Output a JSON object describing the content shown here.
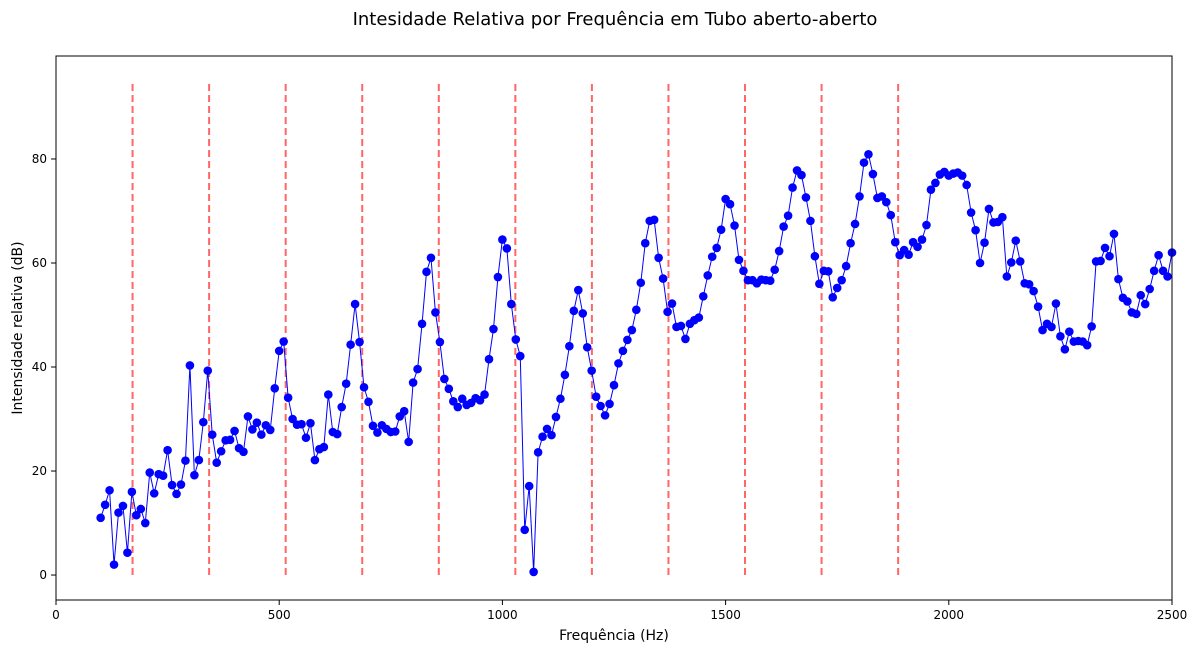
{
  "chart_data": {
    "type": "line",
    "title": "Intesidade Relativa por Frequência em Tubo aberto-aberto",
    "xlabel": "Frequência (Hz)",
    "ylabel": "Intensidade relativa (dB)",
    "x": [
      100,
      110,
      120,
      130,
      140,
      150,
      160,
      170,
      180,
      190,
      200,
      210,
      220,
      230,
      240,
      250,
      260,
      270,
      280,
      290,
      300,
      310,
      320,
      330,
      340,
      350,
      360,
      370,
      380,
      390,
      400,
      410,
      420,
      430,
      440,
      450,
      460,
      470,
      480,
      490,
      500,
      510,
      520,
      530,
      540,
      550,
      560,
      570,
      580,
      590,
      600,
      610,
      620,
      630,
      640,
      650,
      660,
      670,
      680,
      690,
      700,
      710,
      720,
      730,
      740,
      750,
      760,
      770,
      780,
      790,
      800,
      810,
      820,
      830,
      840,
      850,
      860,
      870,
      880,
      890,
      900,
      910,
      920,
      930,
      940,
      950,
      960,
      970,
      980,
      990,
      1000,
      1010,
      1020,
      1030,
      1040,
      1050,
      1060,
      1070,
      1080,
      1090,
      1100,
      1110,
      1120,
      1130,
      1140,
      1150,
      1160,
      1170,
      1180,
      1190,
      1200,
      1210,
      1220,
      1230,
      1240,
      1250,
      1260,
      1270,
      1280,
      1290,
      1300,
      1310,
      1320,
      1330,
      1340,
      1350,
      1360,
      1370,
      1380,
      1390,
      1400,
      1410,
      1420,
      1430,
      1440,
      1450,
      1460,
      1470,
      1480,
      1490,
      1500,
      1510,
      1520,
      1530,
      1540,
      1550,
      1560,
      1570,
      1580,
      1590,
      1600,
      1610,
      1620,
      1630,
      1640,
      1650,
      1660,
      1670,
      1680,
      1690,
      1700,
      1710,
      1720,
      1730,
      1740,
      1750,
      1760,
      1770,
      1780,
      1790,
      1800,
      1810,
      1820,
      1830,
      1840,
      1850,
      1860,
      1870,
      1880,
      1890,
      1900,
      1910,
      1920,
      1930,
      1940,
      1950,
      1960,
      1970,
      1980,
      1990,
      2000,
      2010,
      2020,
      2030,
      2040,
      2050,
      2060,
      2070,
      2080,
      2090,
      2100,
      2110,
      2120,
      2130,
      2140,
      2150,
      2160,
      2170,
      2180,
      2190,
      2200,
      2210,
      2220,
      2230,
      2240,
      2250,
      2260,
      2270,
      2280,
      2290,
      2300,
      2310,
      2320,
      2330,
      2340,
      2350,
      2360,
      2370,
      2380,
      2390,
      2400,
      2410,
      2420,
      2430,
      2440,
      2450,
      2460,
      2470,
      2480,
      2490,
      2500
    ],
    "series": [
      {
        "color": "#0000ff",
        "values": [
          11,
          13.5,
          16.3,
          2,
          12,
          13.3,
          4.3,
          16,
          11.5,
          12.7,
          10,
          19.7,
          15.7,
          19.4,
          19.1,
          24,
          17.3,
          15.6,
          17.4,
          22,
          40.3,
          19.2,
          22.1,
          29.4,
          39.3,
          27,
          21.6,
          23.8,
          25.9,
          26,
          27.7,
          24.4,
          23.7,
          30.5,
          28,
          29.3,
          27,
          28.8,
          27.9,
          35.9,
          43.1,
          44.9,
          34.1,
          30,
          28.9,
          29,
          26.4,
          29.2,
          22.1,
          24.2,
          24.6,
          34.7,
          27.5,
          27.1,
          32.3,
          36.8,
          44.3,
          52.1,
          44.8,
          36.1,
          33.3,
          28.7,
          27.4,
          28.8,
          28.1,
          27.5,
          27.6,
          30.5,
          31.5,
          25.6,
          37,
          39.6,
          48.3,
          58.3,
          61,
          50.5,
          44.8,
          37.7,
          35.8,
          33.4,
          32.3,
          33.9,
          32.7,
          33.1,
          34,
          33.6,
          34.7,
          41.5,
          47.3,
          57.3,
          64.5,
          62.8,
          52.1,
          45.3,
          42.1,
          8.7,
          17.1,
          0.6,
          23.6,
          26.6,
          28.1,
          26.9,
          30.4,
          33.9,
          38.5,
          44,
          50.8,
          54.8,
          50.3,
          43.8,
          39.3,
          34.3,
          32.5,
          30.7,
          32.9,
          36.5,
          40.7,
          43.1,
          45.2,
          47.1,
          51,
          56.2,
          63.8,
          68.1,
          68.3,
          61,
          57,
          50.6,
          52.2,
          47.7,
          47.9,
          45.4,
          48.3,
          49,
          49.5,
          53.6,
          57.6,
          61.2,
          62.9,
          66.4,
          72.3,
          71.3,
          67.2,
          60.6,
          58.5,
          56.7,
          56.7,
          56.1,
          56.8,
          56.7,
          56.6,
          58.7,
          62.3,
          67,
          69.1,
          74.5,
          77.8,
          76.9,
          72.6,
          68.1,
          61.3,
          56,
          58.5,
          58.4,
          53.4,
          55.2,
          56.7,
          59.4,
          63.8,
          67.5,
          72.8,
          79.3,
          80.9,
          77.1,
          72.5,
          72.8,
          71.7,
          69.2,
          64,
          61.5,
          62.5,
          61.6,
          64,
          63.1,
          64.5,
          67.3,
          74.1,
          75.4,
          77,
          77.5,
          76.8,
          77.2,
          77.4,
          76.8,
          75,
          69.7,
          66.3,
          60,
          63.9,
          70.4,
          67.8,
          67.9,
          68.8,
          57.4,
          60.1,
          64.3,
          60.3,
          56.1,
          55.9,
          54.6,
          51.6,
          47.1,
          48.3,
          47.7,
          52.2,
          45.9,
          43.4,
          46.8,
          44.9,
          45,
          44.9,
          44.2,
          47.8,
          60.3,
          60.4,
          62.9,
          61.3,
          65.6,
          56.9,
          53.3,
          52.6,
          50.5,
          50.2,
          53.8,
          52.1,
          55,
          58.5,
          61.5,
          58.5,
          57.4,
          62
        ]
      }
    ],
    "vlines": [
      171.5,
      343,
      514.5,
      686,
      857.5,
      1029,
      1200.5,
      1372,
      1543.5,
      1715,
      1886.5
    ],
    "vline_top": 95,
    "vline_color": "#ff0000",
    "xlim": [
      0,
      2500
    ],
    "ylim": [
      -4.8,
      99.8
    ],
    "xticks": [
      0,
      500,
      1000,
      1500,
      2000,
      2500
    ],
    "yticks": [
      0,
      20,
      40,
      60,
      80
    ]
  }
}
